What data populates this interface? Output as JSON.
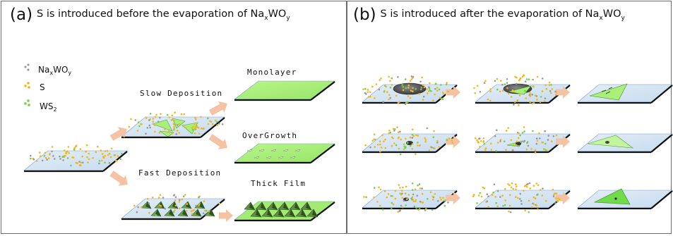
{
  "panel_a": {
    "label": "(a)",
    "title_main": "S is introduced before the evaporation of Na",
    "title_sub1": "x",
    "title_mid": "WO",
    "title_sub2": "y"
  },
  "panel_b": {
    "label": "(b)",
    "title_main": "S is introduced after the evaporation of Na",
    "title_sub1": "x",
    "title_mid": "WO",
    "title_sub2": "y"
  },
  "legend": [
    {
      "text": "Na",
      "sub": "x",
      "text2": "WO",
      "sub2": "y"
    },
    {
      "text": "S",
      "sub": "",
      "text2": "",
      "sub2": ""
    },
    {
      "text": "WS",
      "sub": "2",
      "text2": "",
      "sub2": ""
    }
  ],
  "labels": {
    "slow": "Slow Deposition",
    "fast": "Fast Deposition",
    "monolayer": "Monolayer",
    "overgrowth": "OverGrowth",
    "thick": "Thick Film"
  },
  "colors": {
    "substrate_blue": "#d6e6f3",
    "film_green": "#a9f07a",
    "sulfur_yellow": "#f5b61a",
    "arrow_peach": "#f4c3a3"
  }
}
